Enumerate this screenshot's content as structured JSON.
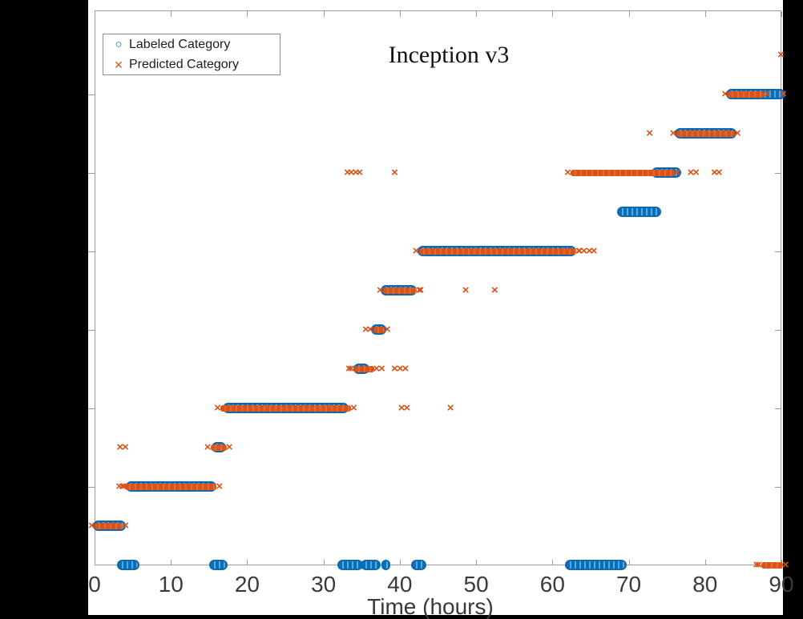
{
  "chart_data": {
    "type": "scatter",
    "title": "Inception v3",
    "xlabel": "Time (hours)",
    "xlim": [
      0,
      90
    ],
    "x_ticks": [
      0,
      10,
      20,
      30,
      40,
      50,
      60,
      70,
      80,
      90
    ],
    "ylim": [
      0,
      14.2
    ],
    "y_ticks_unlabeled": [
      2,
      4,
      6,
      8,
      10,
      12
    ],
    "grid": false,
    "legend": {
      "position": "northwest",
      "entries": [
        {
          "label": "Labeled Category",
          "marker": "circle",
          "glyph": "○"
        },
        {
          "label": "Predicted Category",
          "marker": "x",
          "glyph": "×"
        }
      ]
    },
    "colors": {
      "labeled_fill": "#5FA5D6",
      "labeled_edge": "#0F68AC",
      "labeled_main": "#0072BD",
      "predicted": "#D95319",
      "predicted_alt": "#E8692F",
      "axis": "#9B9B9B",
      "tick_label": "#3A3A3A",
      "figure_bg": "#FFFFFF",
      "page_bg": "#000000"
    },
    "rows": [
      {
        "y": 0,
        "labeled": [
          [
            3.2,
            5.7
          ],
          [
            15.2,
            17.2
          ],
          [
            32.0,
            35.0
          ],
          [
            35.1,
            37.3
          ],
          [
            37.8,
            38.5
          ],
          [
            41.7,
            43.3
          ],
          [
            61.9,
            69.5
          ]
        ],
        "predicted": [
          [
            87.4,
            90.2
          ]
        ],
        "predicted_pts": [
          86.8
        ]
      },
      {
        "y": 1,
        "labeled": [
          [
            0.0,
            3.9
          ]
        ],
        "predicted": [
          [
            0.0,
            3.7
          ]
        ],
        "predicted_pts": []
      },
      {
        "y": 2,
        "labeled": [
          [
            4.3,
            15.8
          ]
        ],
        "predicted": [
          [
            4.0,
            16.0
          ]
        ],
        "predicted_pts": [
          3.3,
          3.9
        ]
      },
      {
        "y": 3,
        "labeled": [
          [
            15.5,
            17.0
          ]
        ],
        "predicted": [
          [
            15.2,
            17.3
          ]
        ],
        "predicted_pts": [
          3.4,
          4.1
        ]
      },
      {
        "y": 4,
        "labeled": [
          [
            17.0,
            33.1
          ]
        ],
        "predicted": [
          [
            16.5,
            33.6
          ]
        ],
        "predicted_pts": [
          40.3,
          41.0,
          46.7
        ]
      },
      {
        "y": 5,
        "labeled": [
          [
            34.1,
            35.8
          ]
        ],
        "predicted": [
          [
            34.0,
            36.6
          ]
        ],
        "predicted_pts": [
          33.4,
          37.7,
          39.4,
          40.1,
          40.8
        ]
      },
      {
        "y": 6,
        "labeled": [
          [
            36.4,
            38.0
          ]
        ],
        "predicted": [
          [
            36.5,
            38.0
          ]
        ],
        "predicted_pts": [
          35.6
        ]
      },
      {
        "y": 7,
        "labeled": [
          [
            37.7,
            42.0
          ]
        ],
        "predicted": [
          [
            37.8,
            42.2
          ]
        ],
        "predicted_pts": [
          42.8,
          48.7,
          52.5
        ]
      },
      {
        "y": 8,
        "labeled": [
          [
            42.5,
            62.9
          ]
        ],
        "predicted": [
          [
            42.5,
            63.1
          ]
        ],
        "predicted_pts": [
          63.6,
          64.2,
          64.9,
          65.5
        ]
      },
      {
        "y": 9,
        "labeled": [
          [
            68.7,
            74.0
          ]
        ],
        "predicted": [],
        "predicted_pts": []
      },
      {
        "y": 10,
        "labeled": [
          [
            73.2,
            76.7
          ]
        ],
        "predicted": [
          [
            62.4,
            76.0
          ]
        ],
        "predicted_pts": [
          33.2,
          33.7,
          34.3,
          34.8,
          39.4,
          78.2,
          78.9,
          81.3,
          81.9
        ]
      },
      {
        "y": 11,
        "labeled": [
          [
            76.2,
            83.9
          ]
        ],
        "predicted": [
          [
            76.2,
            83.9
          ]
        ],
        "predicted_pts": [
          72.8
        ]
      },
      {
        "y": 12,
        "labeled": [
          [
            83.0,
            90.3
          ]
        ],
        "predicted": [
          [
            83.0,
            87.8
          ]
        ],
        "predicted_pts": [
          90.3
        ]
      },
      {
        "y": 13,
        "labeled": [],
        "predicted": [],
        "predicted_pts": [
          90.0
        ]
      }
    ]
  }
}
